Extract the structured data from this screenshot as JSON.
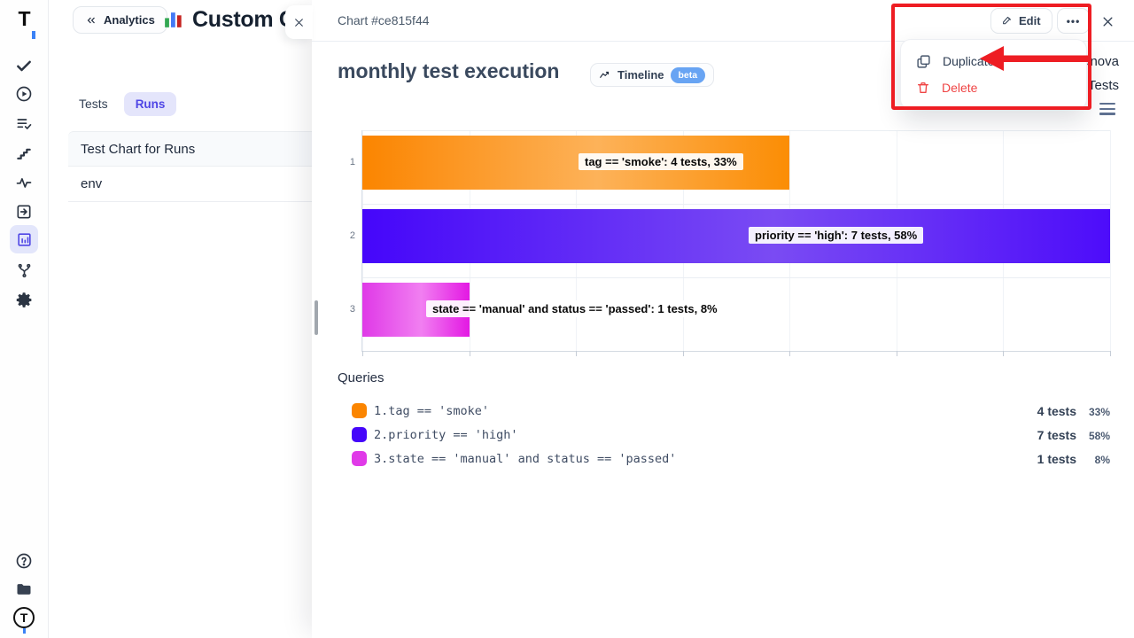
{
  "accent_colors": {
    "indigo": "#4f46e5",
    "beta_blue": "#68a4f3",
    "annotation_red": "#ee1d23",
    "delete_red": "#ef4444"
  },
  "sidebar": {
    "icons": [
      "testomat-logo",
      "check",
      "play-circle",
      "list-check",
      "steps",
      "pulse",
      "box-arrow",
      "bar-chart-active",
      "git-branch",
      "gear",
      "help-circle",
      "folder",
      "account-avatar"
    ],
    "logo_letter": "T",
    "avatar_letter": "T"
  },
  "panel": {
    "back_button_label": "Analytics",
    "title": "Custom Ch",
    "tabs": [
      {
        "label": "Tests",
        "active": false
      },
      {
        "label": "Runs",
        "active": true
      }
    ],
    "list_items": [
      "Test Chart for Runs",
      "env"
    ]
  },
  "modal": {
    "header_title": "Chart #ce815f44",
    "edit_label": "Edit",
    "more_label": "•••",
    "title": "monthly test execution",
    "timeline_label": "Timeline",
    "beta_label": "beta",
    "background_text_1": "anova",
    "background_text_2": "Tests"
  },
  "menu": {
    "duplicate_label": "Duplicate",
    "delete_label": "Delete"
  },
  "chart_data": {
    "type": "bar",
    "orientation": "horizontal",
    "title": "monthly test execution",
    "categories": [
      "1",
      "2",
      "3"
    ],
    "values": [
      4,
      7,
      1
    ],
    "percents": [
      33,
      58,
      8
    ],
    "bar_labels": [
      "tag == 'smoke': 4 tests, 33%",
      "priority == 'high': 7 tests, 58%",
      "state == 'manual' and status == 'passed': 1 tests, 8%"
    ],
    "xlim": [
      0,
      7
    ],
    "grid": true,
    "legend_position": "below",
    "colors": [
      {
        "start": "#fb8500",
        "mid": "#fdb259",
        "end": "#fb8d04"
      },
      {
        "start": "#4506fa",
        "mid": "#7a4bf3",
        "end": "#4d0cfa"
      },
      {
        "start": "#df39e7",
        "mid": "#f17ff1",
        "end": "#e318e3"
      }
    ]
  },
  "queries": {
    "heading": "Queries",
    "rows": [
      {
        "num": "1.",
        "query": "tag == 'smoke'",
        "tests": "4 tests",
        "percent": "33%",
        "color": "#fb8500"
      },
      {
        "num": "2.",
        "query": "priority == 'high'",
        "tests": "7 tests",
        "percent": "58%",
        "color": "#4506fa"
      },
      {
        "num": "3.",
        "query": "state == 'manual' and status == 'passed'",
        "tests": "1 tests",
        "percent": "8%",
        "color": "#e03ae8"
      }
    ]
  }
}
